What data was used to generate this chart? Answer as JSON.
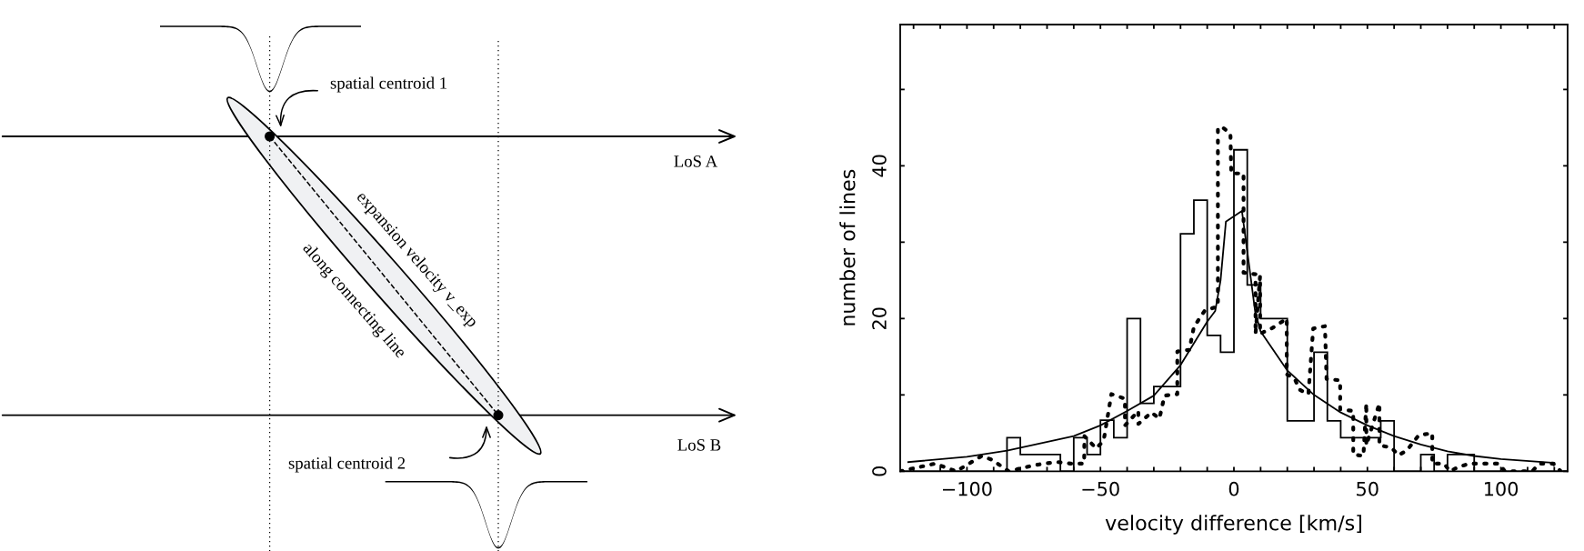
{
  "chart_data": [
    {
      "type": "other",
      "annotations": [
        "spatial centroid 1",
        "LoS A",
        "expansion velocity v_exp",
        "along connecting line",
        "LoS B",
        "spatial centroid 2"
      ]
    },
    {
      "type": "histogram",
      "xlabel": "velocity difference [km/s]",
      "ylabel": "number of lines",
      "xlim": [
        -125,
        125
      ],
      "ylim": [
        0,
        58.5
      ],
      "xticks": [
        {
          "value": -120,
          "label": null
        },
        {
          "value": -110,
          "label": null
        },
        -100,
        {
          "value": -90,
          "label": null
        },
        {
          "value": -80,
          "label": null
        },
        {
          "value": -70,
          "label": null
        },
        {
          "value": -60,
          "label": null
        },
        -50,
        {
          "value": -40,
          "label": null
        },
        {
          "value": -30,
          "label": null
        },
        {
          "value": -20,
          "label": null
        },
        {
          "value": -10,
          "label": null
        },
        0,
        {
          "value": 10,
          "label": null
        },
        {
          "value": 20,
          "label": null
        },
        {
          "value": 30,
          "label": null
        },
        {
          "value": 40,
          "label": null
        },
        50,
        {
          "value": 60,
          "label": null
        },
        {
          "value": 70,
          "label": null
        },
        {
          "value": 80,
          "label": null
        },
        {
          "value": 90,
          "label": null
        },
        100,
        {
          "value": 110,
          "label": null
        },
        {
          "value": 120,
          "label": null
        }
      ],
      "yticks": [
        0,
        {
          "value": 10,
          "label": null
        },
        20,
        {
          "value": 30,
          "label": null
        },
        40,
        {
          "value": 50,
          "label": null
        }
      ],
      "grid": false,
      "series": [
        {
          "type": "histogram",
          "color": "#000000",
          "bins": [
            -125,
            -120,
            -115,
            -110,
            -105,
            -100,
            -95,
            -90,
            -85,
            -80,
            -75,
            -70,
            -65,
            -60,
            -55,
            -50,
            -45,
            -40,
            -35,
            -30,
            -25,
            -20,
            -15,
            -10,
            -5,
            0,
            5,
            10,
            15,
            20,
            25,
            30,
            35,
            40,
            45,
            50,
            55,
            60,
            65,
            70,
            75,
            80,
            85,
            90,
            95,
            100,
            105,
            110,
            115,
            120,
            125
          ],
          "values": [
            0,
            0,
            0,
            0,
            0,
            0,
            0,
            0,
            4.4,
            2.2,
            2.2,
            2.2,
            0,
            4.4,
            2.2,
            6.7,
            4.4,
            20,
            8.9,
            11.1,
            11.1,
            31.1,
            35.5,
            17.8,
            15.6,
            42.1,
            24.4,
            20,
            20,
            6.6,
            6.6,
            15.6,
            6.6,
            4.4,
            4.4,
            4.4,
            6.6,
            0,
            0,
            2.2,
            0,
            2.2,
            2.2,
            0,
            0,
            0,
            0,
            0,
            0,
            0
          ]
        },
        {
          "type": "line",
          "color": "#000000",
          "line_style": "dotted",
          "x": [
            -125,
            -112,
            -104,
            -94.5,
            -90.6,
            -84.4,
            -75.9,
            -71.4,
            -65.9,
            -61.2,
            -56.1,
            -56,
            -51.6,
            -48.8,
            -45.9,
            -40.8,
            -40.8,
            -35.8,
            -35.8,
            -30.9,
            -27.9,
            -26,
            -21.2,
            -21.2,
            -16.7,
            -15,
            -11,
            -6,
            -6,
            -4.1,
            -1.3,
            -1,
            3.6,
            3.6,
            8.1,
            8.1,
            9.8,
            9.8,
            14.6,
            19.8,
            19.8,
            22.8,
            24.5,
            27.9,
            29.7,
            34.1,
            34.7,
            39.8,
            39.8,
            44.7,
            44.7,
            48.5,
            49.6,
            49.6,
            54.5,
            54.5,
            59,
            61.6,
            64.7,
            69.2,
            74.3,
            74.3,
            78.8,
            80.8,
            84.4,
            88.2,
            93.8,
            99.2,
            101.5,
            111.7,
            114.5,
            119.6,
            122.4
          ],
          "values": [
            0,
            1.0,
            0,
            2.0,
            1.5,
            0,
            0.7,
            1.0,
            1.2,
            1.0,
            1.0,
            4.6,
            3.0,
            4.0,
            10.1,
            9.5,
            6.0,
            7.9,
            6.2,
            7.7,
            6.9,
            9.9,
            10.1,
            15.7,
            15.9,
            18.9,
            21.0,
            21.6,
            45,
            45,
            44.2,
            39,
            39,
            26,
            25.8,
            18,
            25.6,
            18,
            18.8,
            20,
            12.7,
            12.1,
            10.7,
            10.1,
            18.7,
            19,
            12.1,
            11.9,
            8.1,
            7.9,
            2.2,
            2.0,
            8.9,
            3.4,
            8.9,
            3.4,
            3.1,
            2.1,
            2.7,
            4.7,
            5.0,
            1.0,
            1.0,
            0,
            0.6,
            1.0,
            1.0,
            1.0,
            0,
            0,
            1.0,
            1.0,
            0
          ]
        },
        {
          "type": "line",
          "color": "#000000",
          "line_style": "solid",
          "x": [
            -122,
            -100,
            -85,
            -60,
            -50,
            -40,
            -30,
            -20,
            -10,
            -7,
            -5,
            -3,
            3,
            5,
            8,
            10,
            20,
            30,
            40,
            50,
            60,
            70,
            80,
            90,
            100,
            120
          ],
          "values": [
            1.2,
            1.9,
            2.7,
            4.6,
            6.0,
            7.9,
            9.9,
            13.9,
            19.6,
            21.0,
            25,
            32.7,
            34.1,
            28.8,
            20.8,
            18.3,
            13.2,
            10,
            7.7,
            6.0,
            4.6,
            3.5,
            2.6,
            2.0,
            1.6,
            1.1
          ]
        }
      ]
    }
  ]
}
